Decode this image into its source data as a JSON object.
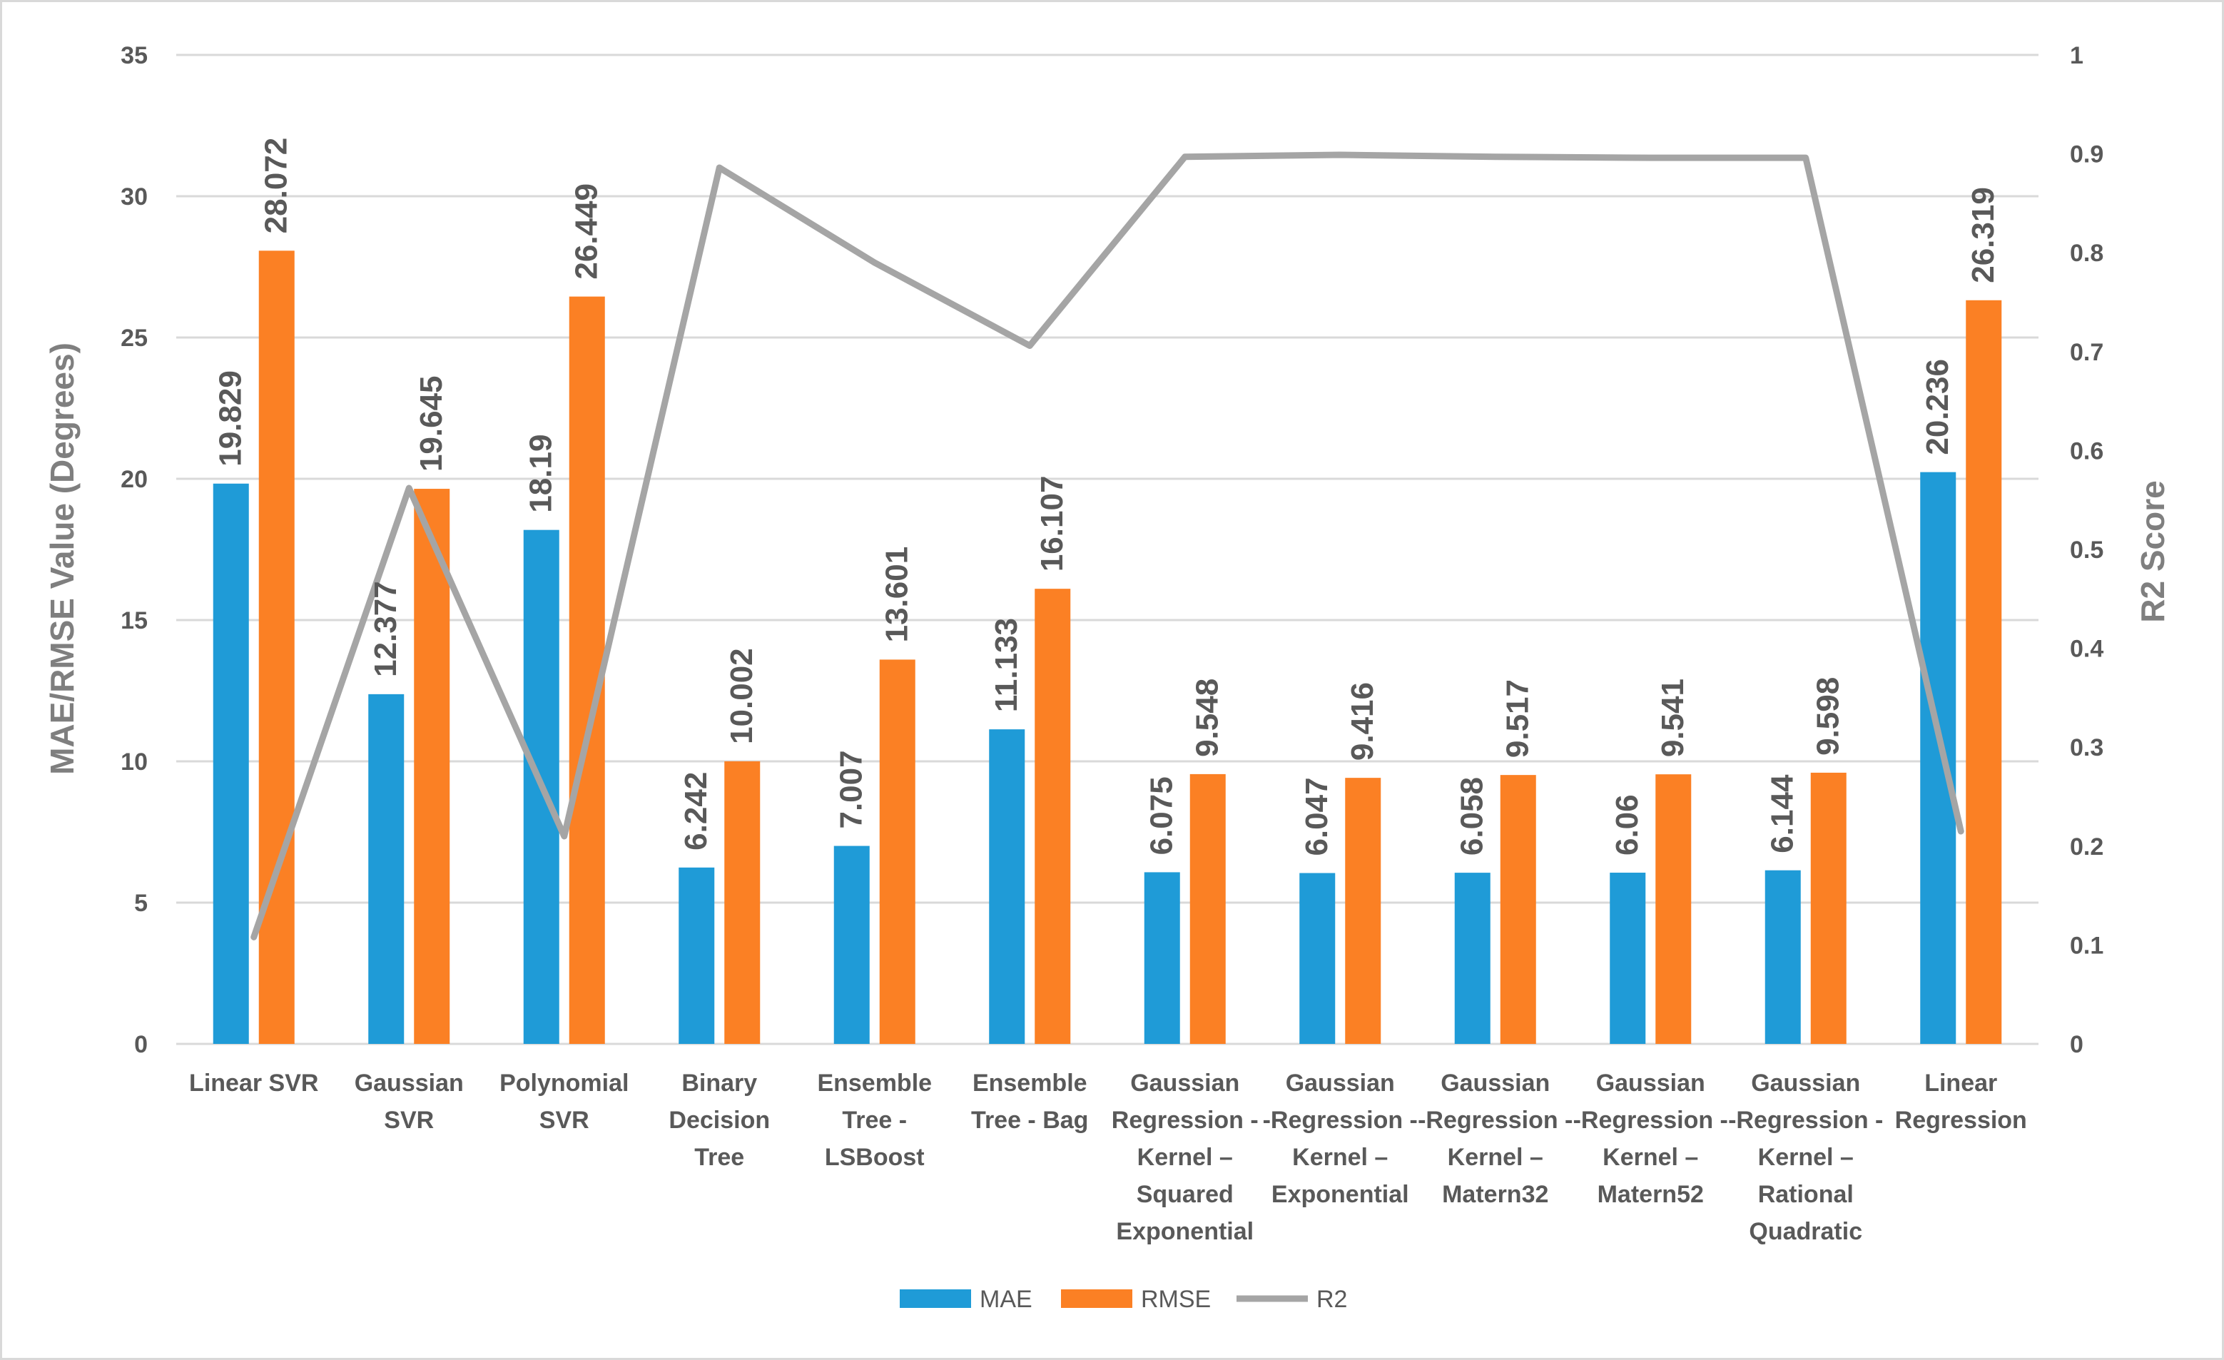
{
  "chart_data": {
    "type": "bar",
    "categories": [
      [
        "Linear SVR"
      ],
      [
        "Gaussian",
        "SVR"
      ],
      [
        "Polynomial",
        "SVR"
      ],
      [
        "Binary",
        "Decision",
        "Tree"
      ],
      [
        "Ensemble",
        "Tree -",
        "LSBoost"
      ],
      [
        "Ensemble",
        "Tree - Bag"
      ],
      [
        "Gaussian",
        "Regression -",
        "Kernel –",
        "Squared",
        "Exponential"
      ],
      [
        "Gaussian",
        "-Regression -",
        "Kernel –",
        "Exponential"
      ],
      [
        "Gaussian",
        "-Regression -",
        "Kernel –",
        "Matern32"
      ],
      [
        "Gaussian",
        "-Regression -",
        "Kernel –",
        "Matern52"
      ],
      [
        "Gaussian",
        "-Regression -",
        "Kernel –",
        "Rational",
        "Quadratic"
      ],
      [
        "Linear",
        "Regression"
      ]
    ],
    "series": [
      {
        "name": "MAE",
        "type": "bar",
        "axis": "left",
        "color": "#1f9bd7",
        "values": [
          19.829,
          12.377,
          18.19,
          6.242,
          7.007,
          11.133,
          6.075,
          6.047,
          6.058,
          6.06,
          6.144,
          20.236
        ],
        "labels": [
          "19.829",
          "12.377",
          "18.19",
          "6.242",
          "7.007",
          "11.133",
          "6.075",
          "6.047",
          "6.058",
          "6.06",
          "6.144",
          "20.236"
        ]
      },
      {
        "name": "RMSE",
        "type": "bar",
        "axis": "left",
        "color": "#fb8024",
        "values": [
          28.072,
          19.645,
          26.449,
          10.002,
          13.601,
          16.107,
          9.548,
          9.416,
          9.517,
          9.541,
          9.598,
          26.319
        ],
        "labels": [
          "28.072",
          "19.645",
          "26.449",
          "10.002",
          "13.601",
          "16.107",
          "9.548",
          "9.416",
          "9.517",
          "9.541",
          "9.598",
          "26.319"
        ]
      },
      {
        "name": "R2",
        "type": "line",
        "axis": "right",
        "color": "#a5a5a5",
        "values": [
          0.108,
          0.562,
          0.21,
          0.886,
          0.79,
          0.706,
          0.897,
          0.899,
          0.897,
          0.896,
          0.896,
          0.215
        ]
      }
    ],
    "ylabel": "MAE/RMSE Value (Degrees)",
    "y2label": "R2 Score",
    "ylim": [
      0,
      35
    ],
    "y2lim": [
      0,
      1
    ],
    "yticks": [
      "0",
      "5",
      "10",
      "15",
      "20",
      "25",
      "30",
      "35"
    ],
    "y2ticks": [
      "0",
      "0.1",
      "0.2",
      "0.3",
      "0.4",
      "0.5",
      "0.6",
      "0.7",
      "0.8",
      "0.9",
      "1"
    ],
    "grid": true,
    "legend": "bottom-center"
  }
}
